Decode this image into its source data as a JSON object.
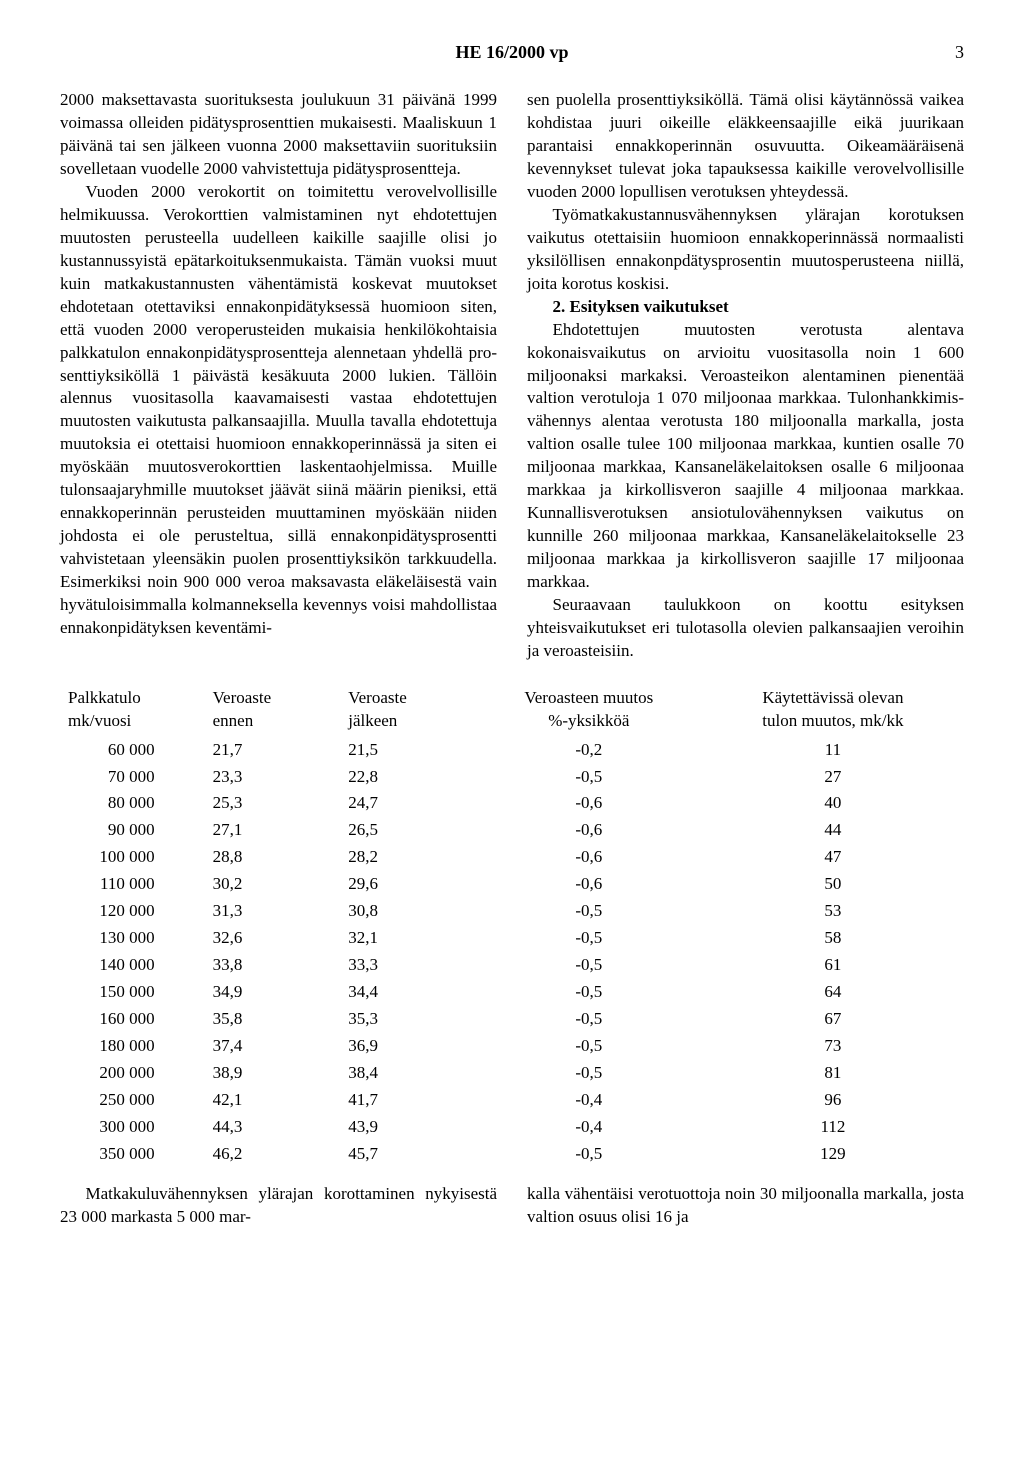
{
  "header": {
    "title": "HE 16/2000 vp",
    "pageNumber": "3"
  },
  "leftColumn": {
    "p1": "2000 maksettavasta suorituksesta joulukuun 31 päivänä 1999 voimassa olleiden pidätys­prosenttien mukaisesti. Maaliskuun 1 päivä­nä tai sen jälkeen vuonna 2000 maksettaviin suorituksiin sovelletaan vuodelle 2000 vah­vistettuja pidätysprosentteja.",
    "p2": "Vuoden 2000 verokortit on toimitettu ve­rovelvollisille helmikuussa. Verokorttien val­mistaminen nyt ehdotettujen muutosten pe­rusteella uudelleen kaikille saajille olisi jo kustannussyistä epätarkoituksenmukaista. Tämän vuoksi muut kuin matkakustannusten vähentämistä koskevat muutokset ehdotetaan otettaviksi ennakonpidätyksessä huomioon siten, että vuoden 2000 veroperusteiden mu­kaisia henkilökohtaisia palkkatulon ennakon­pidätysprosentteja alennetaan yhdellä pro­senttiyksiköllä 1 päivästä kesäkuuta 2000 lu­kien. Tällöin alennus vuositasolla kaavamai­sesti vastaa ehdotettujen muutosten vaikutus­ta palkansaajilla. Muulla tavalla ehdotettuja muutoksia ei otettaisi huomioon ennakkope­rinnässä ja siten ei myöskään muutosvero­korttien laskentaohjelmissa. Muille tulonsaa­jaryhmille muutokset jäävät siinä määrin pieniksi, että ennakkoperinnän perusteiden muuttaminen myöskään niiden johdosta ei ole perusteltua, sillä ennakonpidätysprosentti vahvistetaan yleensäkin puolen prosenttiyksi­kön tarkkuudella. Esimerkiksi noin 900 000 veroa maksavasta eläkeläisestä vain hyvätu­loisimmalla kolmanneksella kevennys voisi mahdollistaa ennakonpidätyksen keventämi-"
  },
  "rightColumn": {
    "p1": "sen puolella prosenttiyksiköllä. Tämä olisi käytännössä vaikea kohdistaa juuri oikeille eläkkeensaajille eikä juurikaan parantaisi en­nakkoperinnän osuvuutta. Oikeamääräisenä kevennykset tulevat joka tapauksessa kaikille verovelvollisille vuoden 2000 lopullisen ve­rotuksen yhteydessä.",
    "p2": "Työmatkakustannusvähennyksen ylärajan korotuksen vaikutus otettaisiin huomioon en­nakkoperinnässä normaalisti yksilöllisen en­nakonpdätysprosentin muutosperusteena niil­lä, joita korotus koskisi.",
    "sectionTitle": "2.   Esityksen vaikutukset",
    "p3": "Ehdotettujen muutosten verotusta alentava kokonaisvaikutus on arvioitu vuositasolla noin 1 600 miljoonaksi markaksi. Veroastei­kon alentaminen pienentää valtion verotuloja 1 070 miljoonaa markkaa. Tulonhankkimis­vähennys alentaa verotusta 180 miljoonalla markalla, josta valtion osalle tulee 100 mil­joonaa markkaa, kuntien osalle 70 miljoonaa markkaa, Kansaneläkelaitoksen osalle 6 mil­joonaa markkaa ja kirkollisveron saajille 4 miljoonaa markkaa. Kunnallisverotuksen ansiotulovähennyksen vaikutus on kunnille 260 miljoonaa markkaa, Kansaneläkelaitok­selle 23 miljoonaa markkaa ja kirkollisveron saajille 17 miljoonaa markkaa.",
    "p4": "Seuraavaan taulukkoon on koottu esityksen yhteisvaikutukset eri tulotasolla olevien pal­kansaajien veroihin ja veroasteisiin."
  },
  "table": {
    "headers": {
      "salary": "Palkkatulo\nmk/vuosi",
      "before": "Veroaste\nennen",
      "after": "Veroaste\njälkeen",
      "change": "Veroasteen muutos\n%-yksikköä",
      "income": "Käytettävissä olevan\ntulon muutos, mk/kk"
    },
    "rows": [
      {
        "salary": "60 000",
        "before": "21,7",
        "after": "21,5",
        "change": "-0,2",
        "income": "11"
      },
      {
        "salary": "70 000",
        "before": "23,3",
        "after": "22,8",
        "change": "-0,5",
        "income": "27"
      },
      {
        "salary": "80 000",
        "before": "25,3",
        "after": "24,7",
        "change": "-0,6",
        "income": "40"
      },
      {
        "salary": "90 000",
        "before": "27,1",
        "after": "26,5",
        "change": "-0,6",
        "income": "44"
      },
      {
        "salary": "100 000",
        "before": "28,8",
        "after": "28,2",
        "change": "-0,6",
        "income": "47"
      },
      {
        "salary": "110 000",
        "before": "30,2",
        "after": "29,6",
        "change": "-0,6",
        "income": "50"
      },
      {
        "salary": "120 000",
        "before": "31,3",
        "after": "30,8",
        "change": "-0,5",
        "income": "53"
      },
      {
        "salary": "130 000",
        "before": "32,6",
        "after": "32,1",
        "change": "-0,5",
        "income": "58"
      },
      {
        "salary": "140 000",
        "before": "33,8",
        "after": "33,3",
        "change": "-0,5",
        "income": "61"
      },
      {
        "salary": "150 000",
        "before": "34,9",
        "after": "34,4",
        "change": "-0,5",
        "income": "64"
      },
      {
        "salary": "160 000",
        "before": "35,8",
        "after": "35,3",
        "change": "-0,5",
        "income": "67"
      },
      {
        "salary": "180 000",
        "before": "37,4",
        "after": "36,9",
        "change": "-0,5",
        "income": "73"
      },
      {
        "salary": "200 000",
        "before": "38,9",
        "after": "38,4",
        "change": "-0,5",
        "income": "81"
      },
      {
        "salary": "250 000",
        "before": "42,1",
        "after": "41,7",
        "change": "-0,4",
        "income": "96"
      },
      {
        "salary": "300 000",
        "before": "44,3",
        "after": "43,9",
        "change": "-0,4",
        "income": "112"
      },
      {
        "salary": "350 000",
        "before": "46,2",
        "after": "45,7",
        "change": "-0,5",
        "income": "129"
      }
    ]
  },
  "bottomLeft": {
    "p1": "Matkakuluvähennyksen ylärajan korottami­nen nykyisestä 23 000 markasta 5 000 mar-"
  },
  "bottomRight": {
    "p1": "kalla vähentäisi verotuottoja noin 30 miljoo­nalla markalla, josta valtion osuus olisi 16 ja"
  }
}
